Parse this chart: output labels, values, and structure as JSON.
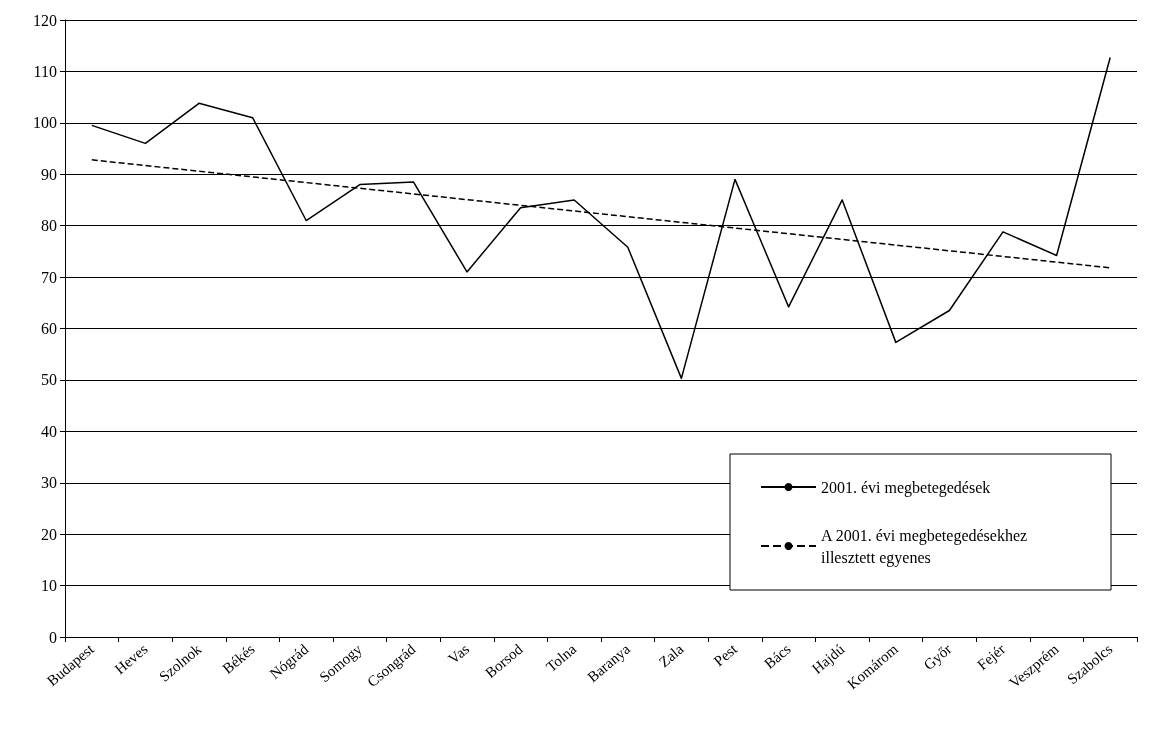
{
  "chart_data": {
    "type": "line",
    "categories": [
      "Budapest",
      "Heves",
      "Szolnok",
      "Békés",
      "Nógrád",
      "Somogy",
      "Csongrád",
      "Vas",
      "Borsod",
      "Tolna",
      "Baranya",
      "Zala",
      "Pest",
      "Bács",
      "Hajdú",
      "Komárom",
      "Győr",
      "Fejér",
      "Veszprém",
      "Szabolcs"
    ],
    "series": [
      {
        "name": "2001. évi megbetegedések",
        "color": "#000000",
        "line_style": "solid",
        "values": [
          99.5,
          96,
          103.8,
          101,
          81,
          88,
          88.5,
          71,
          83.5,
          85,
          75.8,
          50.3,
          89,
          64.2,
          85,
          57.3,
          63.5,
          78.8,
          74.2,
          112.7
        ]
      },
      {
        "name": "A 2001. évi megbetegedésekhez illesztett egyenes",
        "type": "line",
        "color": "#000000",
        "line_style": "dashed",
        "x": [
          "Budapest",
          "Szabolcs"
        ],
        "values": [
          92.8,
          71.8
        ]
      }
    ],
    "ylim": [
      0,
      120
    ],
    "yticks": [
      0,
      10,
      20,
      30,
      40,
      50,
      60,
      70,
      80,
      90,
      100,
      110,
      120
    ],
    "grid": "y",
    "legend": "bottom right",
    "marker": "none"
  }
}
